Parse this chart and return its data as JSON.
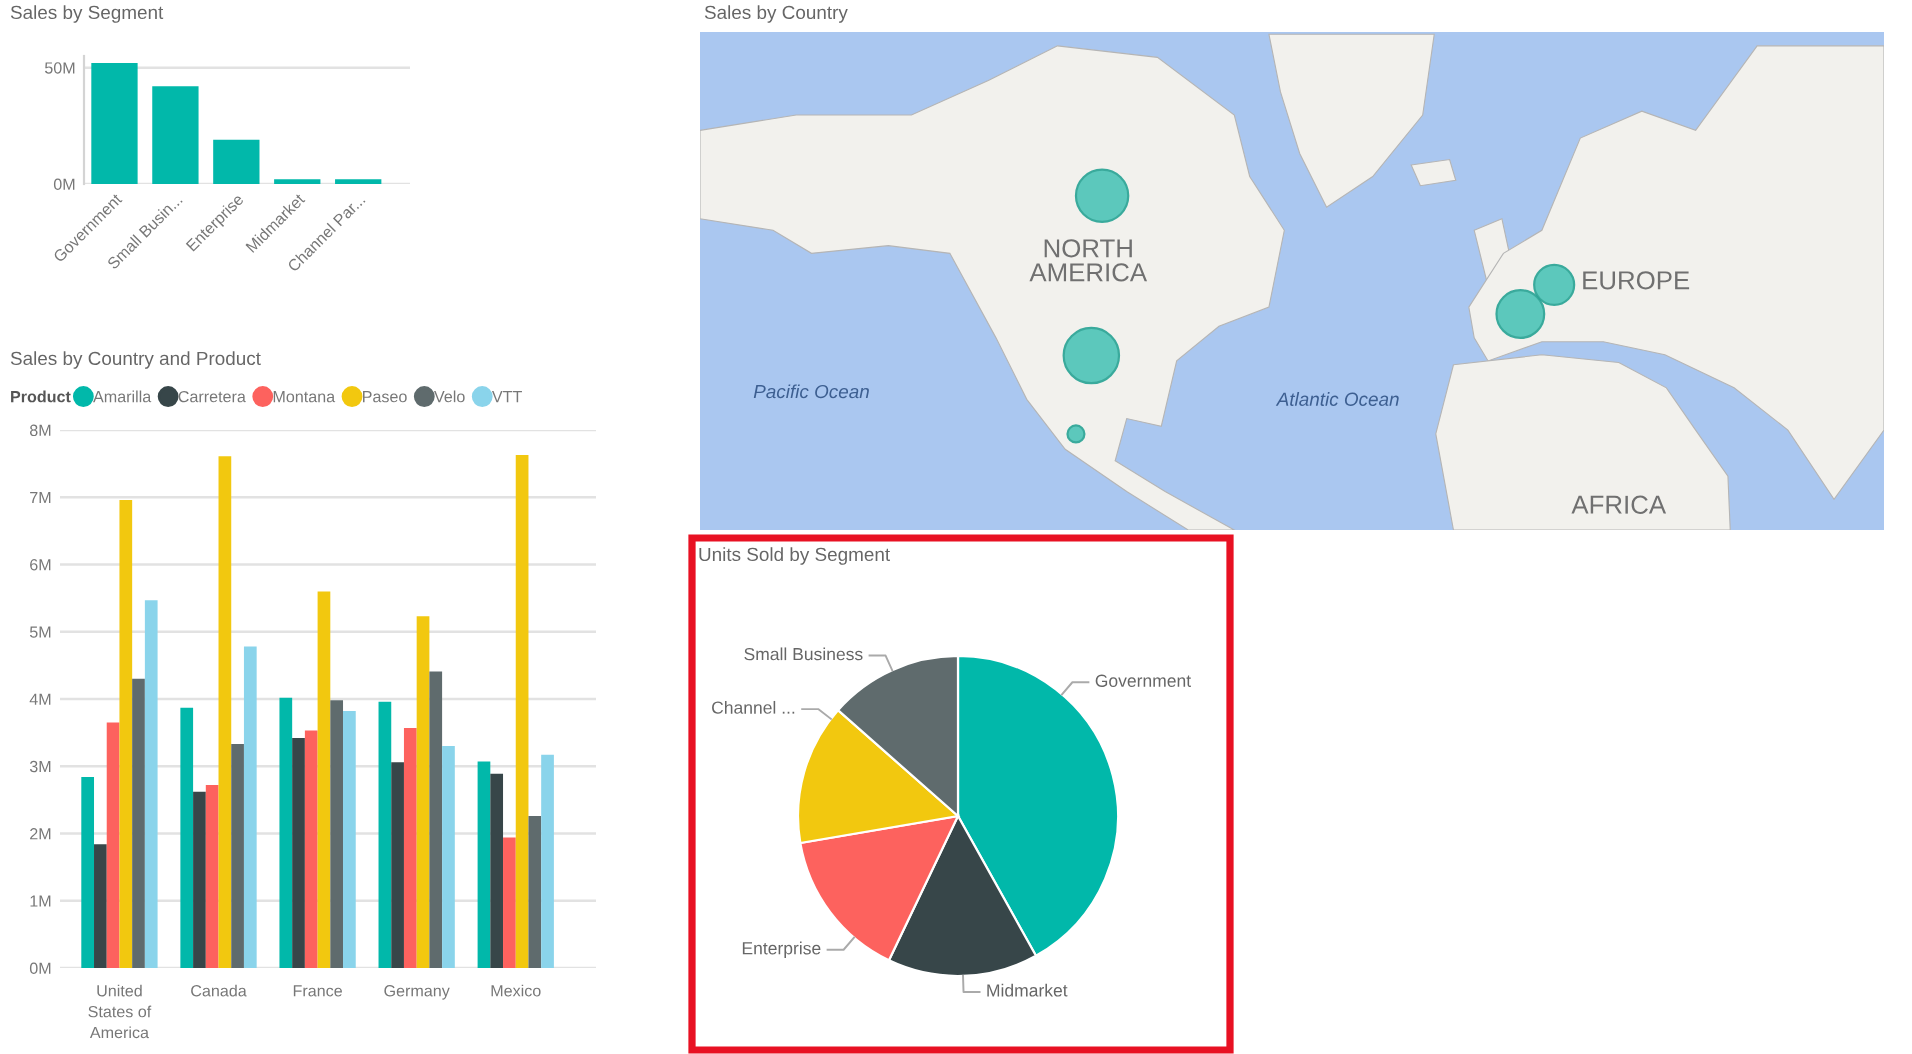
{
  "chart_data": [
    {
      "type": "bar",
      "title": "Sales by Segment",
      "categories": [
        "Government",
        "Small Busin...",
        "Enterprise",
        "Midmarket",
        "Channel Par..."
      ],
      "values": [
        52,
        42,
        19,
        2,
        2
      ],
      "color": "#01b8aa",
      "ylim": [
        0,
        55
      ],
      "yticks": [
        {
          "value": 0,
          "label": "0M"
        },
        {
          "value": 50,
          "label": "50M"
        }
      ],
      "grid": "y"
    },
    {
      "type": "other",
      "title": "Sales by Country",
      "annotations": [
        "NORTH AMERICA",
        "EUROPE",
        "Pacific Ocean",
        "Atlantic Ocean",
        "AFRICA"
      ]
    },
    {
      "type": "bar",
      "title": "Sales by Country and Product",
      "legend_title": "Product",
      "categories": [
        "United States of America",
        "Canada",
        "France",
        "Germany",
        "Mexico"
      ],
      "series": [
        {
          "name": "Amarilla",
          "color": "#01b8aa",
          "values": [
            2.84,
            3.87,
            4.02,
            3.96,
            3.07
          ]
        },
        {
          "name": "Carretera",
          "color": "#374649",
          "values": [
            1.84,
            2.62,
            3.42,
            3.06,
            2.89
          ]
        },
        {
          "name": "Montana",
          "color": "#fd625e",
          "values": [
            3.65,
            2.72,
            3.53,
            3.57,
            1.94
          ]
        },
        {
          "name": "Paseo",
          "color": "#f2c80f",
          "values": [
            6.96,
            7.61,
            5.6,
            5.23,
            7.63
          ]
        },
        {
          "name": "Velo",
          "color": "#5f6b6d",
          "values": [
            4.3,
            3.33,
            3.98,
            4.41,
            2.26
          ]
        },
        {
          "name": "VTT",
          "color": "#8ad4eb",
          "values": [
            5.47,
            4.78,
            3.82,
            3.3,
            3.17
          ]
        }
      ],
      "ylim": [
        0,
        8
      ],
      "yticks": [
        {
          "value": 0,
          "label": "0M"
        },
        {
          "value": 1,
          "label": "1M"
        },
        {
          "value": 2,
          "label": "2M"
        },
        {
          "value": 3,
          "label": "3M"
        },
        {
          "value": 4,
          "label": "4M"
        },
        {
          "value": 5,
          "label": "5M"
        },
        {
          "value": 6,
          "label": "6M"
        },
        {
          "value": 7,
          "label": "7M"
        },
        {
          "value": 8,
          "label": "8M"
        }
      ],
      "grid": "y",
      "legend": "top left"
    },
    {
      "type": "pie",
      "title": "Units Sold by Segment",
      "categories": [
        "Government",
        "Midmarket",
        "Enterprise",
        "Channel ...",
        "Small Business"
      ],
      "values": [
        41.9,
        15.2,
        15.2,
        14.2,
        13.5
      ],
      "colors": [
        "#01b8aa",
        "#374649",
        "#fd625e",
        "#f2c80f",
        "#5f6b6d"
      ]
    }
  ]
}
